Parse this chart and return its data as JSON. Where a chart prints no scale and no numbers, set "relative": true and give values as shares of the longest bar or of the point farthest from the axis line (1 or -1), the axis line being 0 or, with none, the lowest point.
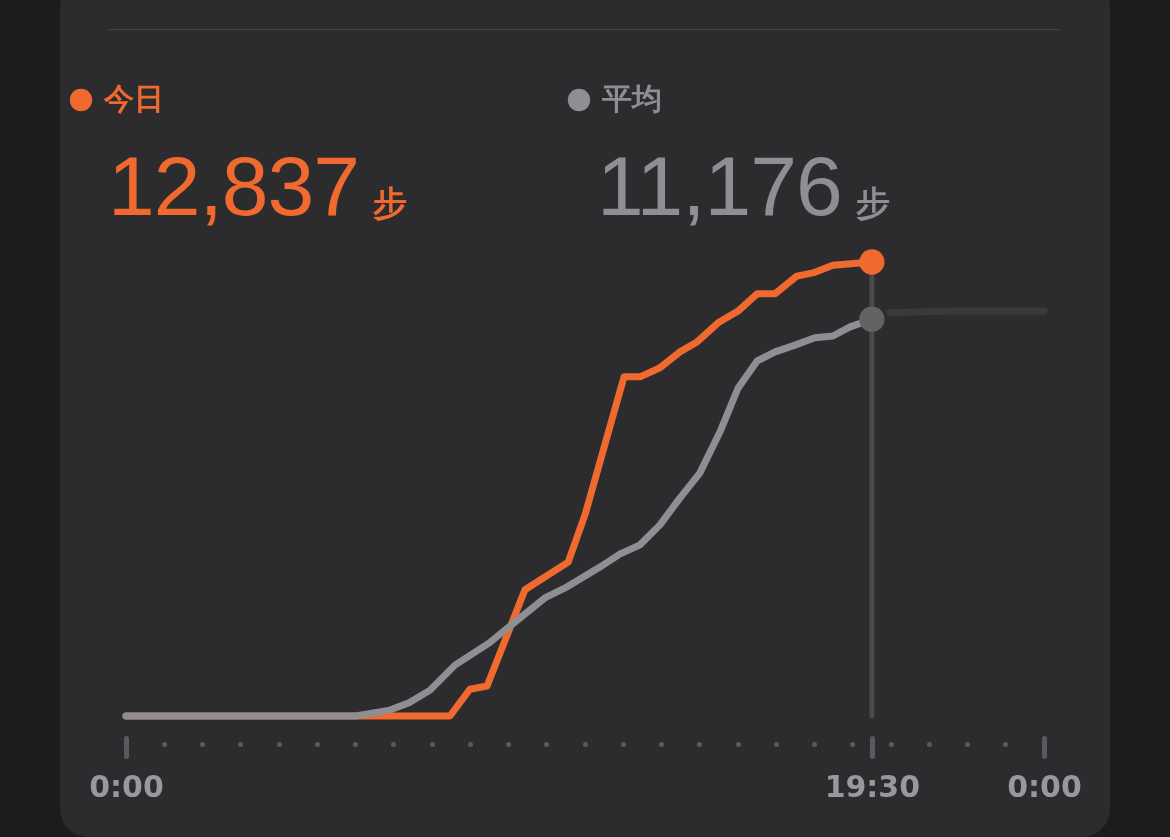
{
  "chart_data": {
    "type": "line",
    "relative": true,
    "legend": "top left",
    "annotations": [
      "12,837 步",
      "11,176 步"
    ],
    "xlim": [
      0,
      24
    ],
    "xticks": [
      {
        "value": 0,
        "label": "0:00"
      },
      {
        "value": 19.5,
        "label": "19:30"
      },
      {
        "value": 24,
        "label": "0:00"
      }
    ],
    "ref_lines": [
      {
        "axis": "x",
        "value": 19.5,
        "color": "#4a4a4c"
      }
    ],
    "series": [
      {
        "name": "今日",
        "color": "#f0692f",
        "x": [
          0,
          8.47,
          8.99,
          9.44,
          10.43,
          11.56,
          12.0,
          13.02,
          13.44,
          13.96,
          14.48,
          14.93,
          15.48,
          16.0,
          16.5,
          16.97,
          17.54,
          17.96,
          18.48,
          19.5
        ],
        "values": [
          0,
          0,
          0.059,
          0.066,
          0.278,
          0.339,
          0.443,
          0.747,
          0.747,
          0.767,
          0.802,
          0.824,
          0.866,
          0.892,
          0.93,
          0.93,
          0.969,
          0.976,
          0.993,
          1
        ]
      },
      {
        "name": "平均",
        "color": "#8e8e93",
        "x": [
          0,
          6.0,
          6.9,
          7.4,
          7.95,
          8.6,
          9.5,
          10.3,
          10.95,
          11.48,
          12.39,
          12.92,
          13.44,
          13.96,
          14.48,
          15.0,
          15.53,
          16.0,
          16.5,
          16.97,
          17.49,
          18.01,
          18.48,
          18.93,
          19.5
        ],
        "values": [
          0,
          0,
          0.013,
          0.029,
          0.057,
          0.112,
          0.161,
          0.216,
          0.26,
          0.282,
          0.328,
          0.357,
          0.377,
          0.421,
          0.48,
          0.535,
          0.626,
          0.722,
          0.782,
          0.802,
          0.817,
          0.833,
          0.837,
          0.857,
          0.874
        ]
      },
      {
        "color": "#3a3a3c",
        "x": [
          19.97,
          21.54,
          24
        ],
        "values": [
          0.888,
          0.892,
          0.892
        ]
      },
      {
        "type": "scatter",
        "color": "#f0692f",
        "x": [
          19.5
        ],
        "values": [
          1
        ]
      },
      {
        "type": "scatter",
        "color": "#636366",
        "x": [
          19.5
        ],
        "values": [
          0.874
        ]
      }
    ]
  }
}
